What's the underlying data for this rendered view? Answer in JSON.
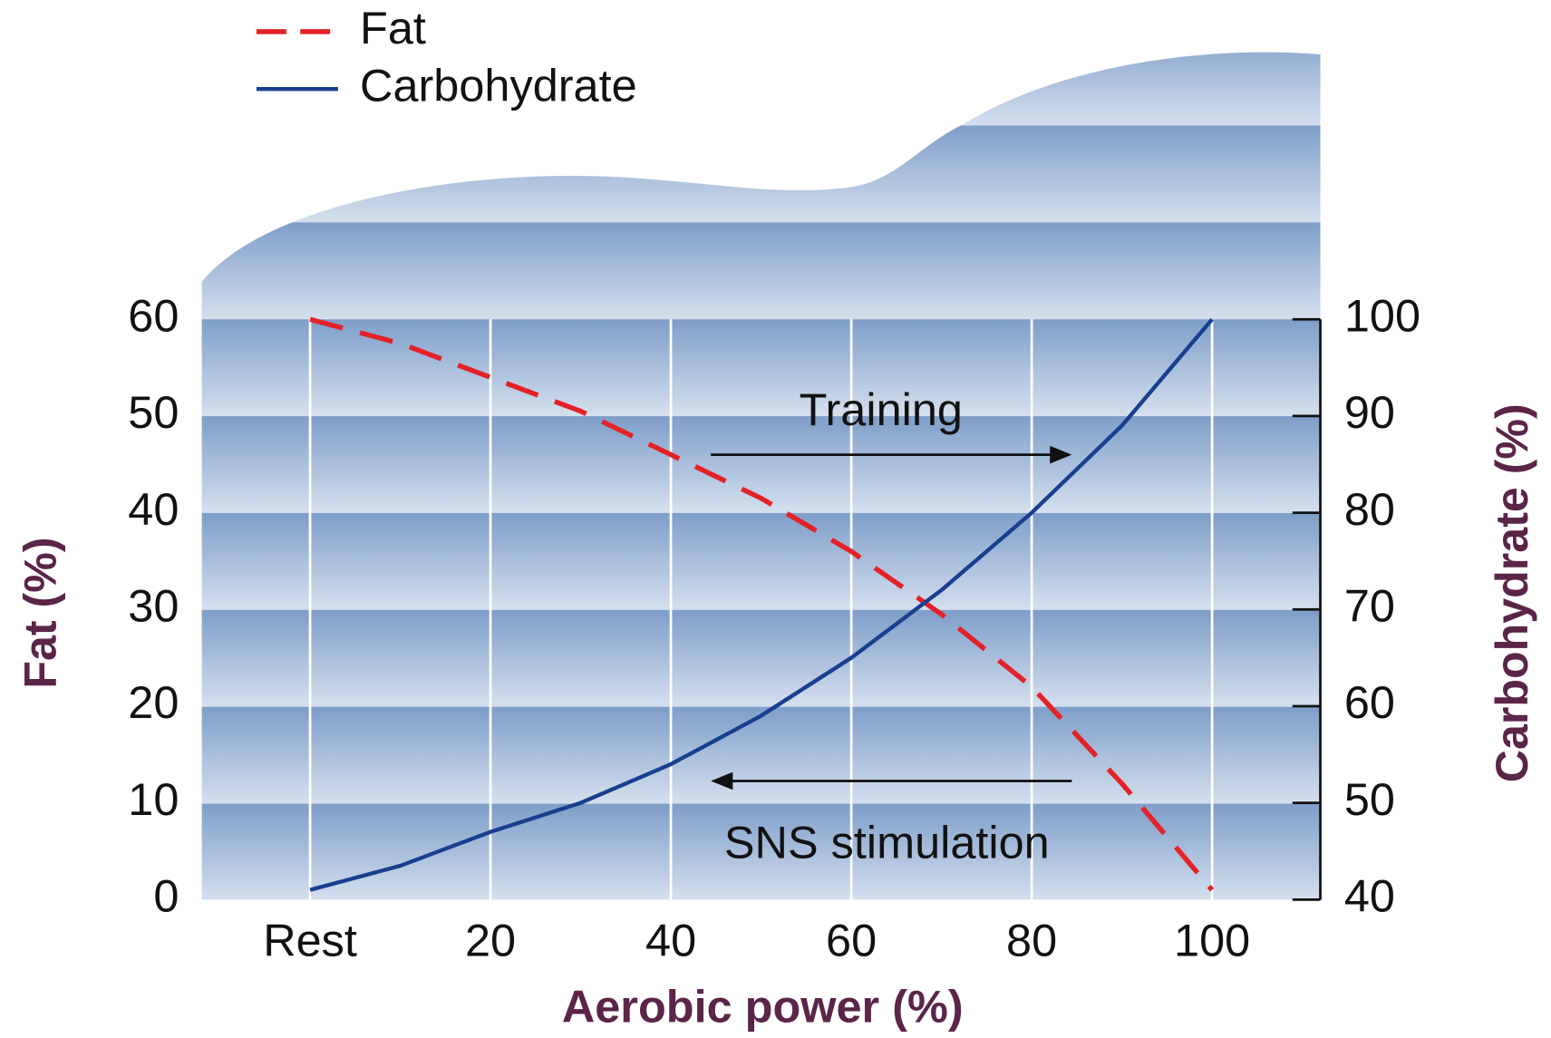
{
  "chart_data": {
    "type": "line",
    "x": [
      0,
      10,
      20,
      30,
      40,
      50,
      60,
      70,
      80,
      90,
      100
    ],
    "xlim": [
      -12,
      112
    ],
    "xticks": [
      {
        "value": 0,
        "label": "Rest"
      },
      20,
      40,
      60,
      80,
      100
    ],
    "ylim": [
      0,
      60
    ],
    "yticks": [
      0,
      10,
      20,
      30,
      40,
      50,
      60
    ],
    "y2lim": [
      40,
      100
    ],
    "y2ticks": [
      40,
      50,
      60,
      70,
      80,
      90,
      100
    ],
    "xlabel": "Aerobic power (%)",
    "ylabel": "Fat (%)",
    "y2label": "Carbohydrate (%)",
    "grid": true,
    "legend": "upper left",
    "series": [
      {
        "name": "Fat",
        "color": "#e32228",
        "dashed": true,
        "values": [
          60,
          57.5,
          54,
          50.5,
          46,
          41.5,
          36,
          29.5,
          22,
          12,
          1
        ]
      },
      {
        "name": "Carbohydrate",
        "color": "#1a3f8f",
        "axis": "y2",
        "values": [
          41,
          43.5,
          47,
          50,
          54,
          59,
          65,
          72,
          80,
          89,
          100
        ]
      }
    ],
    "annotations": [
      "Training",
      "SNS stimulation"
    ]
  }
}
